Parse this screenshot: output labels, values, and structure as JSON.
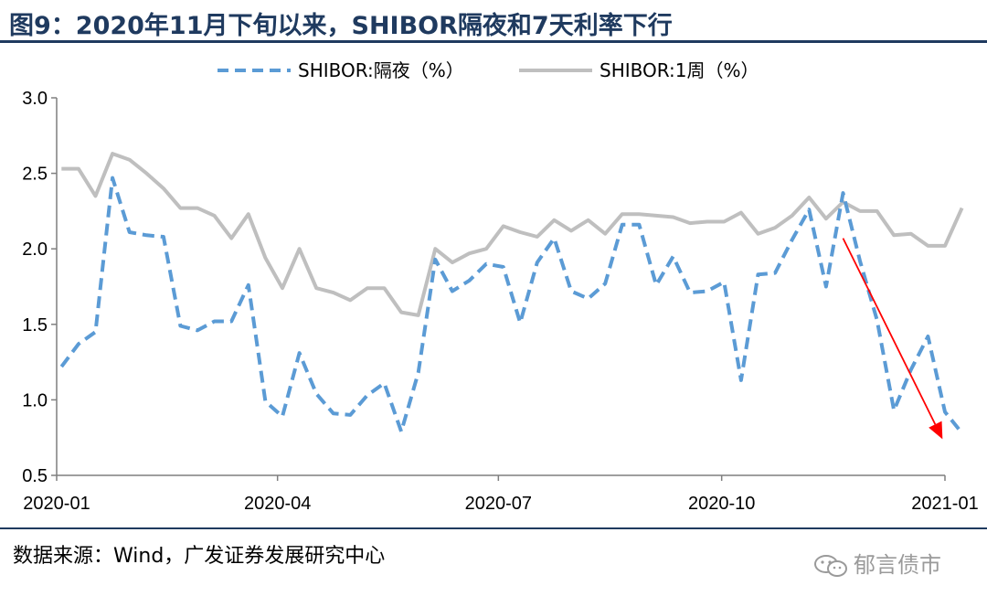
{
  "header": {
    "title": "图9：2020年11月下旬以来，SHIBOR隔夜和7天利率下行"
  },
  "footer": {
    "source": "数据来源：Wind，广发证券发展研究中心",
    "watermark": "郁言债市",
    "watermark_icon": "wechat-icon"
  },
  "chart_data": {
    "type": "line",
    "title": "",
    "xlabel": "",
    "ylabel": "",
    "ylim": [
      0.5,
      3.0
    ],
    "yticks": [
      "3.0",
      "2.5",
      "2.0",
      "1.5",
      "1.0",
      "0.5"
    ],
    "xticks": [
      "2020-01",
      "2020-04",
      "2020-07",
      "2020-10",
      "2021-01"
    ],
    "grid": false,
    "legend_position": "top",
    "series": [
      {
        "name": "SHIBOR:隔夜（%）",
        "style": "dashed",
        "color": "#5b9bd5",
        "x": [
          "2020-01-03",
          "2020-01-10",
          "2020-01-17",
          "2020-01-24",
          "2020-01-31",
          "2020-02-07",
          "2020-02-14",
          "2020-02-21",
          "2020-02-28",
          "2020-03-06",
          "2020-03-13",
          "2020-03-20",
          "2020-03-27",
          "2020-04-03",
          "2020-04-10",
          "2020-04-17",
          "2020-04-24",
          "2020-05-01",
          "2020-05-08",
          "2020-05-15",
          "2020-05-22",
          "2020-05-29",
          "2020-06-05",
          "2020-06-12",
          "2020-06-19",
          "2020-06-26",
          "2020-07-03",
          "2020-07-10",
          "2020-07-17",
          "2020-07-24",
          "2020-07-31",
          "2020-08-07",
          "2020-08-14",
          "2020-08-21",
          "2020-08-28",
          "2020-09-04",
          "2020-09-11",
          "2020-09-18",
          "2020-09-25",
          "2020-10-02",
          "2020-10-09",
          "2020-10-16",
          "2020-10-23",
          "2020-10-30",
          "2020-11-06",
          "2020-11-13",
          "2020-11-20",
          "2020-11-27",
          "2020-12-04",
          "2020-12-11",
          "2020-12-18",
          "2020-12-25",
          "2021-01-01",
          "2021-01-08"
        ],
        "values": [
          1.22,
          1.37,
          1.45,
          2.47,
          2.11,
          2.09,
          2.08,
          1.49,
          1.46,
          1.52,
          1.52,
          1.76,
          0.99,
          0.89,
          1.31,
          1.04,
          0.91,
          0.9,
          1.03,
          1.11,
          0.79,
          1.18,
          1.93,
          1.72,
          1.79,
          1.9,
          1.88,
          1.51,
          1.91,
          2.07,
          1.72,
          1.67,
          1.77,
          2.16,
          2.16,
          1.76,
          1.95,
          1.71,
          1.72,
          1.78,
          1.13,
          1.83,
          1.84,
          2.06,
          2.26,
          1.75,
          2.37,
          1.92,
          1.53,
          0.93,
          1.2,
          1.42,
          0.92,
          0.78
        ]
      },
      {
        "name": "SHIBOR:1周（%）",
        "style": "solid",
        "color": "#bfbfbf",
        "x": [
          "2020-01-03",
          "2020-01-10",
          "2020-01-17",
          "2020-01-24",
          "2020-01-31",
          "2020-02-07",
          "2020-02-14",
          "2020-02-21",
          "2020-02-28",
          "2020-03-06",
          "2020-03-13",
          "2020-03-20",
          "2020-03-27",
          "2020-04-03",
          "2020-04-10",
          "2020-04-17",
          "2020-04-24",
          "2020-05-01",
          "2020-05-08",
          "2020-05-15",
          "2020-05-22",
          "2020-05-29",
          "2020-06-05",
          "2020-06-12",
          "2020-06-19",
          "2020-06-26",
          "2020-07-03",
          "2020-07-10",
          "2020-07-17",
          "2020-07-24",
          "2020-07-31",
          "2020-08-07",
          "2020-08-14",
          "2020-08-21",
          "2020-08-28",
          "2020-09-04",
          "2020-09-11",
          "2020-09-18",
          "2020-09-25",
          "2020-10-02",
          "2020-10-09",
          "2020-10-16",
          "2020-10-23",
          "2020-10-30",
          "2020-11-06",
          "2020-11-13",
          "2020-11-20",
          "2020-11-27",
          "2020-12-04",
          "2020-12-11",
          "2020-12-18",
          "2020-12-25",
          "2021-01-01",
          "2021-01-08"
        ],
        "values": [
          2.53,
          2.53,
          2.35,
          2.63,
          2.59,
          2.5,
          2.4,
          2.27,
          2.27,
          2.22,
          2.07,
          2.23,
          1.94,
          1.74,
          2.0,
          1.74,
          1.71,
          1.66,
          1.74,
          1.74,
          1.58,
          1.56,
          2.0,
          1.91,
          1.97,
          2.0,
          2.15,
          2.11,
          2.08,
          2.19,
          2.12,
          2.19,
          2.1,
          2.23,
          2.23,
          2.22,
          2.21,
          2.17,
          2.18,
          2.18,
          2.24,
          2.1,
          2.14,
          2.22,
          2.34,
          2.2,
          2.31,
          2.25,
          2.25,
          2.09,
          2.1,
          2.02,
          2.02,
          2.27
        ]
      }
    ],
    "annotations": [
      {
        "type": "arrow",
        "color": "#ff0000",
        "from": {
          "x": "2020-11-20",
          "y": 2.07
        },
        "to": {
          "x": "2020-12-31",
          "y": 0.74
        }
      }
    ]
  }
}
